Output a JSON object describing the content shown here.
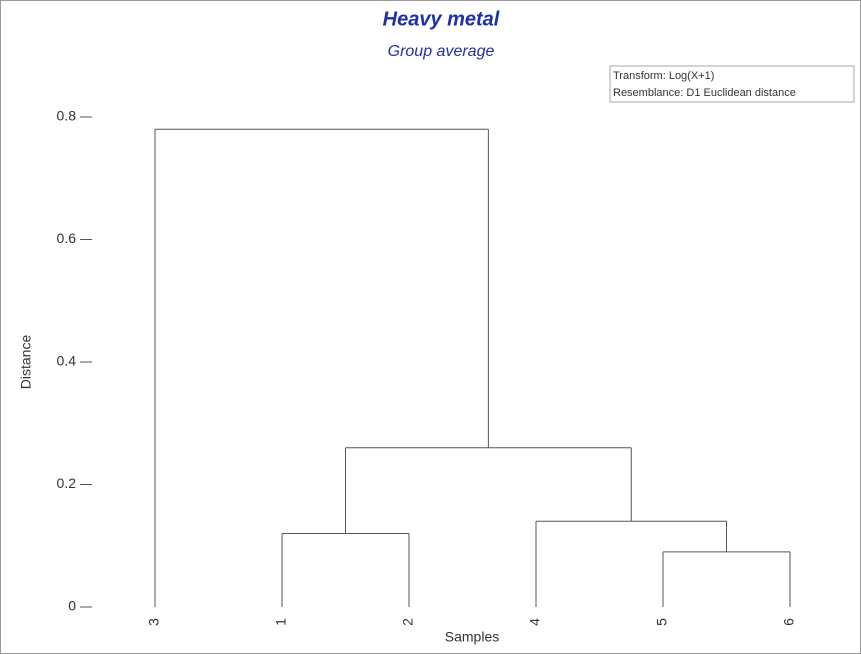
{
  "chart_data": {
    "type": "dendrogram",
    "title": "Heavy metal",
    "subtitle": "Group average",
    "title_color": "#1f2fa8",
    "x_label": "Samples",
    "y_label": "Distance",
    "categories": [
      "3",
      "1",
      "2",
      "4",
      "5",
      "6"
    ],
    "merges": [
      {
        "left": 4,
        "right": 5,
        "height": 0.09
      },
      {
        "left": 1,
        "right": 2,
        "height": 0.12
      },
      {
        "left": 3,
        "right": 6,
        "height": 0.14
      },
      {
        "left": 7,
        "right": 8,
        "height": 0.26
      },
      {
        "left": 0,
        "right": 9,
        "height": 0.78
      }
    ],
    "ylim": [
      0,
      0.8
    ],
    "yticks": [
      0,
      0.2,
      0.4,
      0.6,
      0.8
    ],
    "info": [
      "Transform: Log(X+1)",
      "Resemblance: D1 Euclidean distance"
    ],
    "color": "#555555"
  }
}
